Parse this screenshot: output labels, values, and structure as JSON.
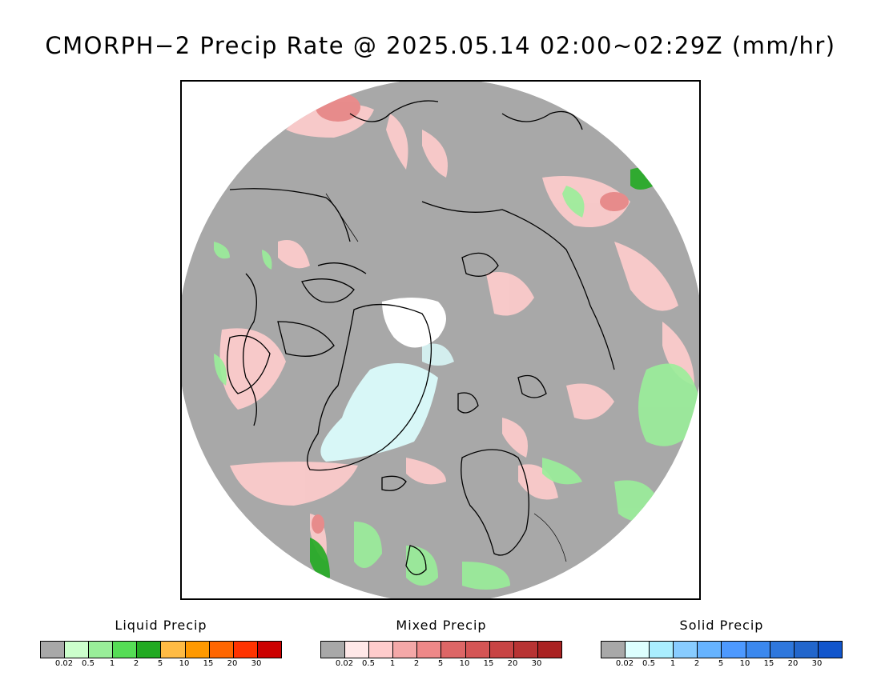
{
  "title": "CMORPH−2 Precip Rate @ 2025.05.14 02:00~02:29Z (mm/hr)",
  "map": {
    "projection": "polar-stereographic-north",
    "background_color": "#a8a8a8",
    "no_data_color": "#ffffff",
    "coastline_color": "#000000"
  },
  "legends": [
    {
      "id": "liquid",
      "title": "Liquid Precip",
      "colors": [
        "#a8a8a8",
        "#ccffcc",
        "#99ee99",
        "#55dd55",
        "#22aa22",
        "#ffbb44",
        "#ff9900",
        "#ff6600",
        "#ff3300",
        "#cc0000"
      ],
      "ticks": [
        "0.02",
        "0.5",
        "1",
        "2",
        "5",
        "10",
        "15",
        "20",
        "30"
      ]
    },
    {
      "id": "mixed",
      "title": "Mixed Precip",
      "colors": [
        "#a8a8a8",
        "#ffe8e8",
        "#ffcccc",
        "#f4a8a8",
        "#ee8888",
        "#dd6666",
        "#d45555",
        "#c84444",
        "#b83333",
        "#aa2222"
      ],
      "ticks": [
        "0.02",
        "0.5",
        "1",
        "2",
        "5",
        "10",
        "15",
        "20",
        "30"
      ]
    },
    {
      "id": "solid",
      "title": "Solid Precip",
      "colors": [
        "#a8a8a8",
        "#ddffff",
        "#aaeeff",
        "#88ccff",
        "#66b3ff",
        "#4d99ff",
        "#3b88ee",
        "#2e77dd",
        "#2266cc",
        "#1155cc"
      ],
      "ticks": [
        "0.02",
        "0.5",
        "1",
        "2",
        "5",
        "10",
        "15",
        "20",
        "30"
      ]
    }
  ]
}
